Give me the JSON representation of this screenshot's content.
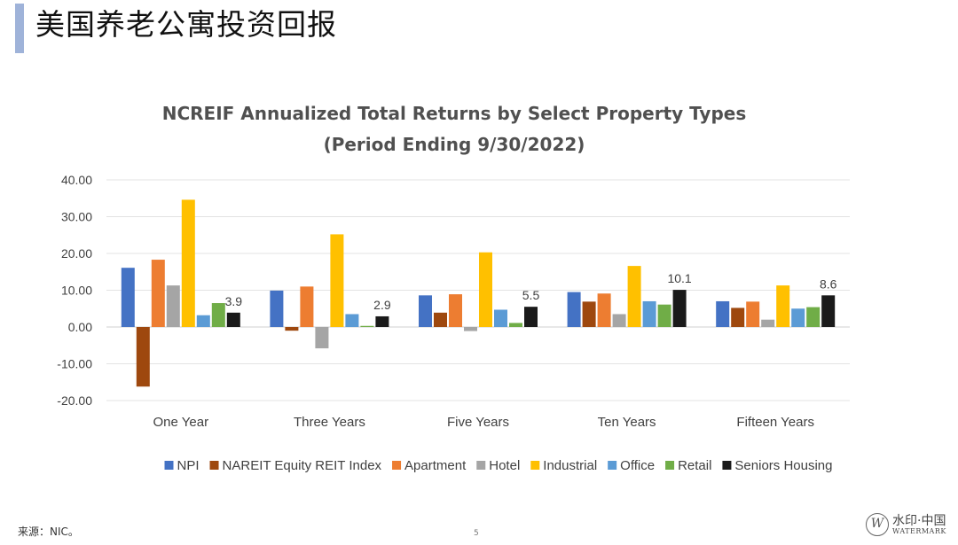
{
  "slide": {
    "title": "美国养老公寓投资回报",
    "source": "来源：NIC。",
    "page_number": "5",
    "watermark_main": "水印·中国",
    "watermark_sub": "WATERMARK",
    "watermark_logo": "W"
  },
  "chart_data": {
    "type": "bar",
    "title": "NCREIF Annualized Total Returns by Select Property Types",
    "subtitle": "(Period Ending 9/30/2022)",
    "categories": [
      "One Year",
      "Three Years",
      "Five Years",
      "Ten Years",
      "Fifteen Years"
    ],
    "ylim": [
      -20,
      40
    ],
    "yticks": [
      "40.00",
      "30.00",
      "20.00",
      "10.00",
      "0.00",
      "-10.00",
      "-20.00"
    ],
    "grid": true,
    "legend_position": "bottom",
    "series": [
      {
        "name": "NPI",
        "color": "#4472c4",
        "values": [
          16.1,
          9.9,
          8.6,
          9.5,
          7.0
        ]
      },
      {
        "name": "NAREIT Equity REIT Index",
        "color": "#9e480e",
        "values": [
          -16.2,
          -1.0,
          3.9,
          6.9,
          5.2
        ]
      },
      {
        "name": "Apartment",
        "color": "#ed7d31",
        "values": [
          18.3,
          11.0,
          8.9,
          9.1,
          6.9
        ]
      },
      {
        "name": "Hotel",
        "color": "#a5a5a5",
        "values": [
          11.3,
          -5.8,
          -1.1,
          3.5,
          2.0
        ]
      },
      {
        "name": "Industrial",
        "color": "#ffc000",
        "values": [
          34.6,
          25.2,
          20.3,
          16.6,
          11.3
        ]
      },
      {
        "name": "Office",
        "color": "#5b9bd5",
        "values": [
          3.2,
          3.5,
          4.7,
          7.0,
          5.0
        ]
      },
      {
        "name": "Retail",
        "color": "#70ad47",
        "values": [
          6.5,
          0.3,
          1.1,
          6.1,
          5.4
        ]
      },
      {
        "name": "Seniors Housing",
        "color": "#1a1a1a",
        "values": [
          3.9,
          2.9,
          5.5,
          10.1,
          8.6
        ]
      }
    ],
    "data_labels": [
      {
        "series": "Seniors Housing",
        "category": "One Year",
        "text": "3.9",
        "color": "#404040"
      },
      {
        "series": "Seniors Housing",
        "category": "Three Years",
        "text": "2.9",
        "color": "#404040"
      },
      {
        "series": "Seniors Housing",
        "category": "Five Years",
        "text": "5.5",
        "color": "#404040"
      },
      {
        "series": "Seniors Housing",
        "category": "Ten Years",
        "text": "10.1",
        "color": "#9a9a9a"
      },
      {
        "series": "Seniors Housing",
        "category": "Fifteen Years",
        "text": "8.6",
        "color": "#404040"
      }
    ]
  }
}
